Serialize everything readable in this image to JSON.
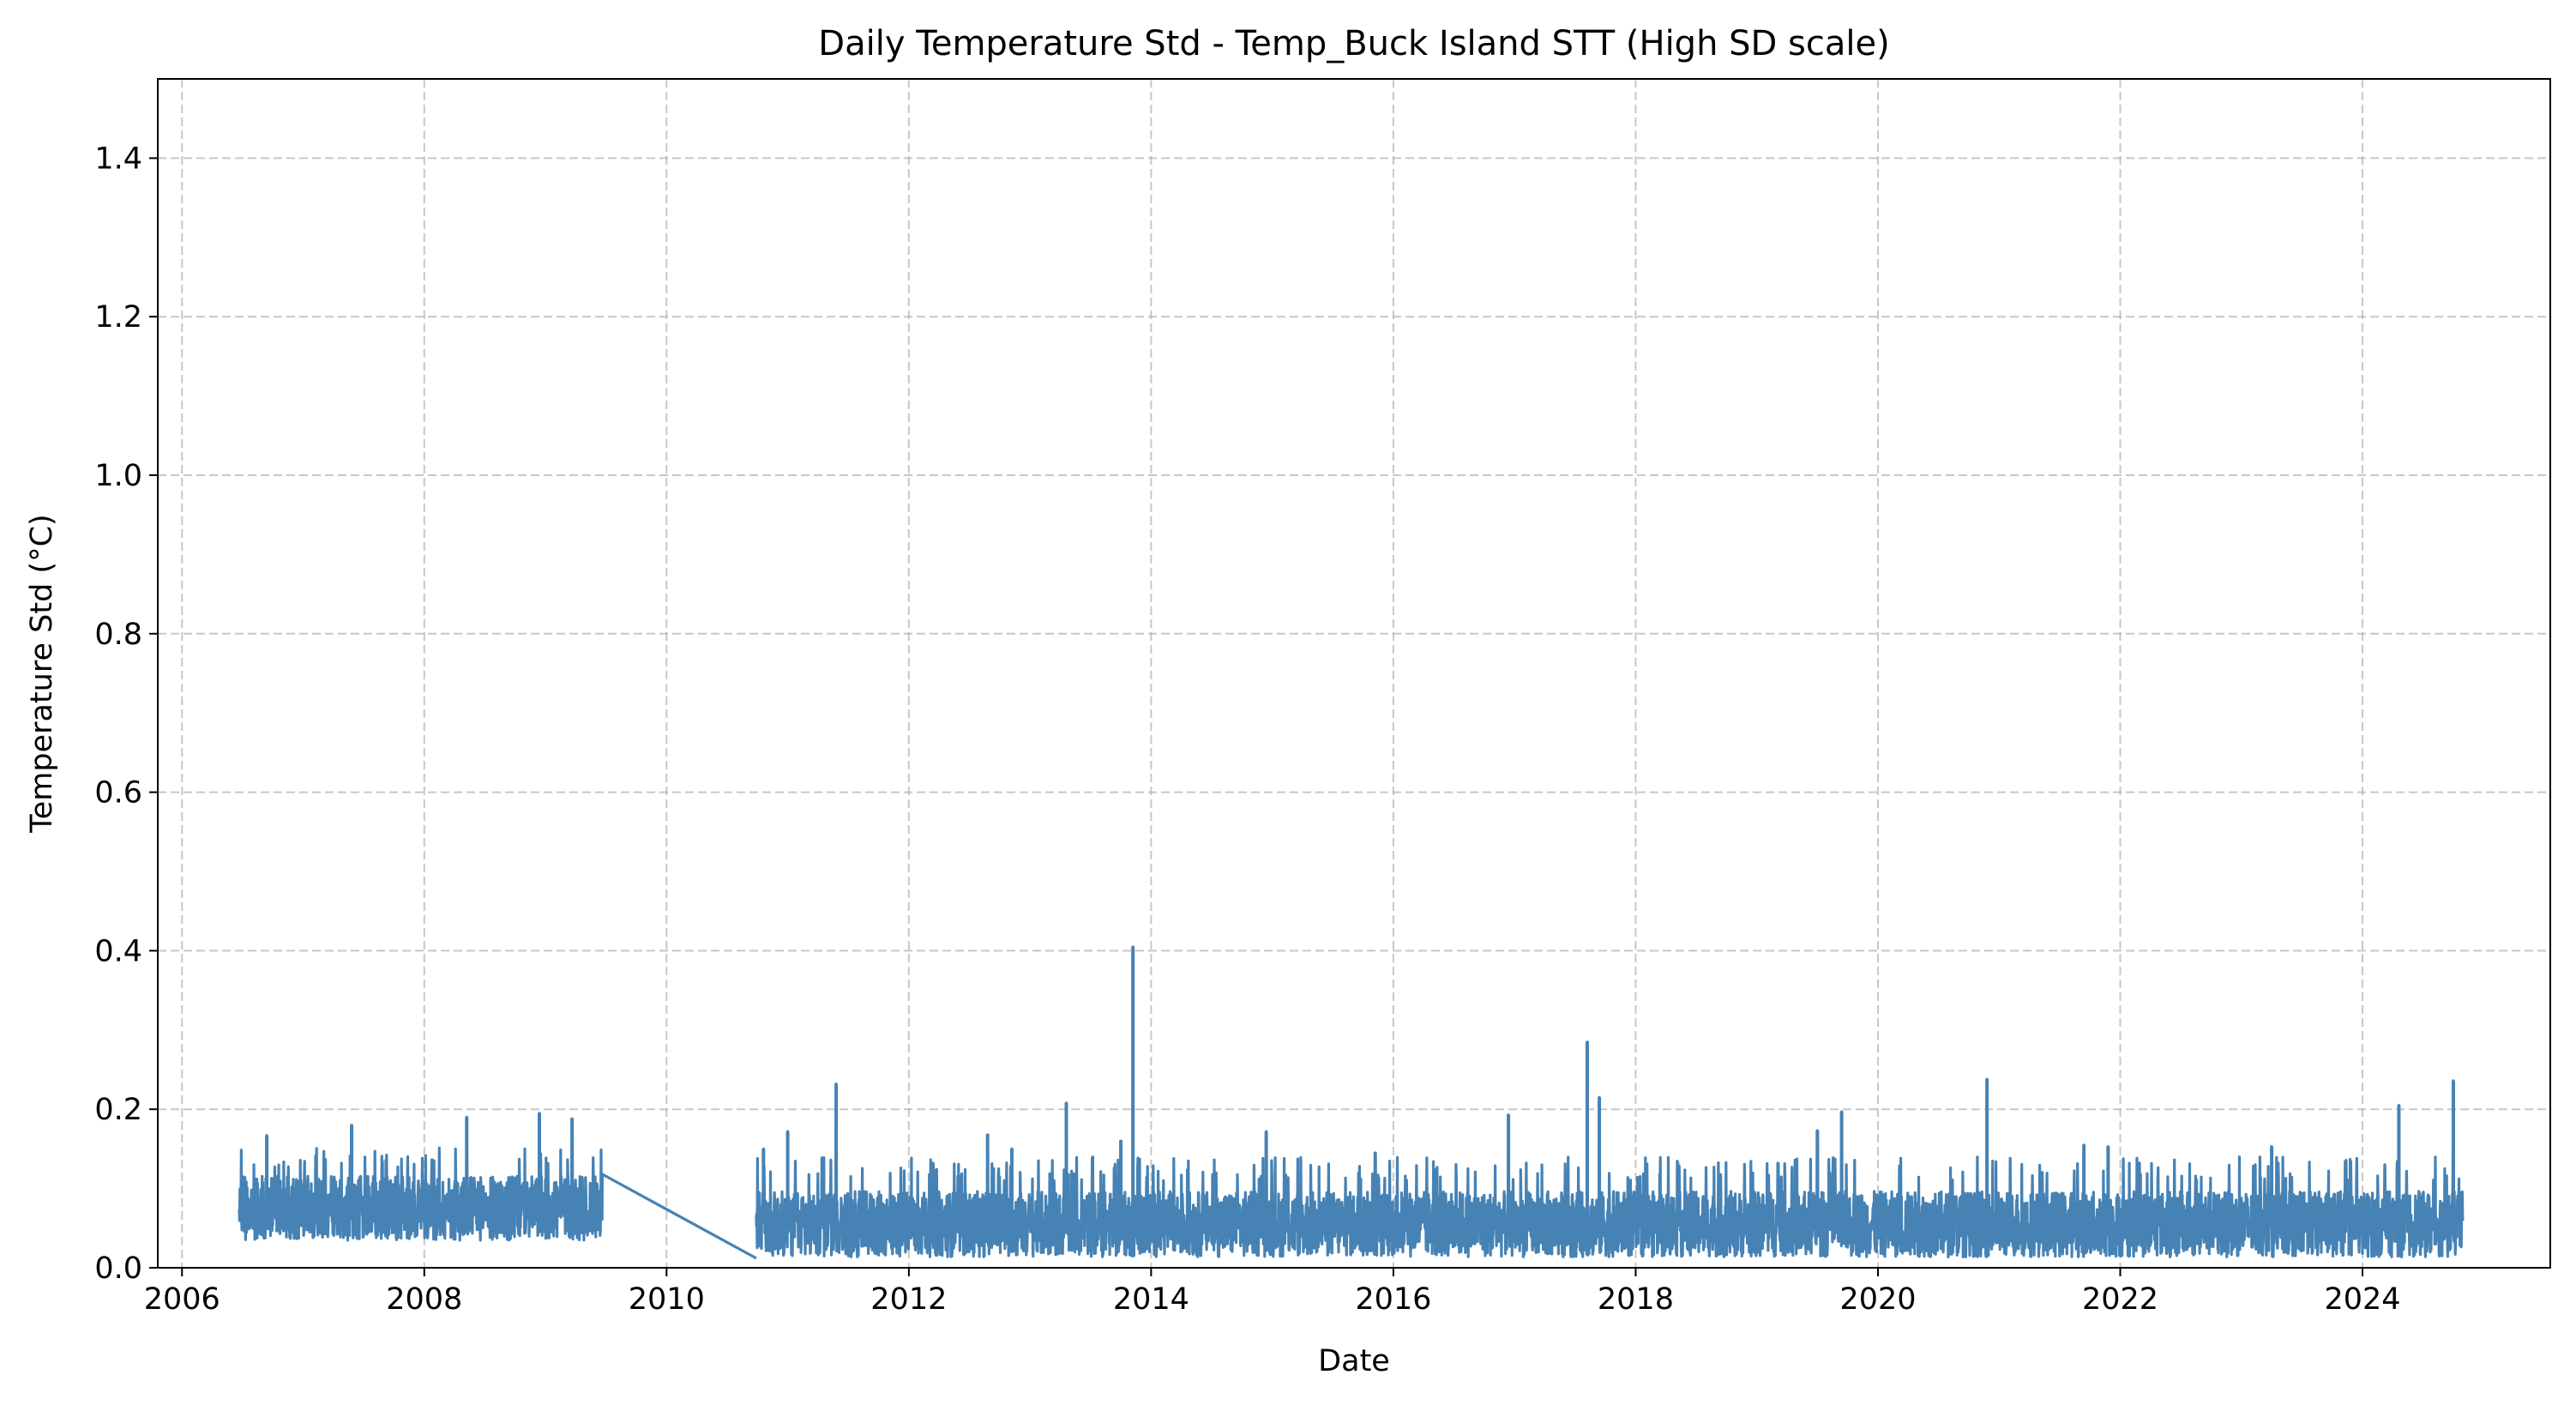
{
  "chart_data": {
    "type": "line",
    "title": "Daily Temperature Std - Temp_Buck Island STT (High SD scale)",
    "xlabel": "Date",
    "ylabel": "Temperature Std (°C)",
    "xlim": [
      2005.8,
      2025.55
    ],
    "ylim": [
      0.0,
      1.5
    ],
    "x_ticks": [
      2006,
      2008,
      2010,
      2012,
      2014,
      2016,
      2018,
      2020,
      2022,
      2024
    ],
    "y_ticks": [
      0.0,
      0.2,
      0.4,
      0.6,
      0.8,
      1.0,
      1.2,
      1.4
    ],
    "y_tick_labels": [
      "0.0",
      "0.2",
      "0.4",
      "0.6",
      "0.8",
      "1.0",
      "1.2",
      "1.4"
    ],
    "grid": true,
    "series": [
      {
        "name": "Temperature Std",
        "color": "#4682b4",
        "segments": [
          {
            "start": 2006.47,
            "end": 2009.47,
            "min": 0.035,
            "max": 0.125,
            "base": 0.075
          },
          {
            "start": 2010.74,
            "end": 2024.83,
            "min": 0.018,
            "max": 0.11,
            "base": 0.055
          }
        ],
        "gap_line": {
          "x": [
            2009.47,
            2010.74
          ],
          "y": [
            0.118,
            0.012
          ]
        },
        "peaks": [
          {
            "x": 2006.7,
            "y": 0.167
          },
          {
            "x": 2007.4,
            "y": 0.18
          },
          {
            "x": 2008.35,
            "y": 0.19
          },
          {
            "x": 2008.95,
            "y": 0.195
          },
          {
            "x": 2009.22,
            "y": 0.188
          },
          {
            "x": 2010.8,
            "y": 0.15
          },
          {
            "x": 2011.0,
            "y": 0.172
          },
          {
            "x": 2011.4,
            "y": 0.232
          },
          {
            "x": 2012.2,
            "y": 0.132
          },
          {
            "x": 2012.65,
            "y": 0.168
          },
          {
            "x": 2012.85,
            "y": 0.15
          },
          {
            "x": 2013.3,
            "y": 0.208
          },
          {
            "x": 2013.75,
            "y": 0.16
          },
          {
            "x": 2013.85,
            "y": 0.405
          },
          {
            "x": 2014.95,
            "y": 0.172
          },
          {
            "x": 2015.85,
            "y": 0.145
          },
          {
            "x": 2016.95,
            "y": 0.193
          },
          {
            "x": 2017.6,
            "y": 0.285
          },
          {
            "x": 2017.7,
            "y": 0.215
          },
          {
            "x": 2019.5,
            "y": 0.173
          },
          {
            "x": 2019.7,
            "y": 0.197
          },
          {
            "x": 2020.9,
            "y": 0.238
          },
          {
            "x": 2021.7,
            "y": 0.155
          },
          {
            "x": 2021.9,
            "y": 0.153
          },
          {
            "x": 2023.25,
            "y": 0.153
          },
          {
            "x": 2024.3,
            "y": 0.205
          },
          {
            "x": 2024.75,
            "y": 0.236
          }
        ]
      }
    ]
  }
}
